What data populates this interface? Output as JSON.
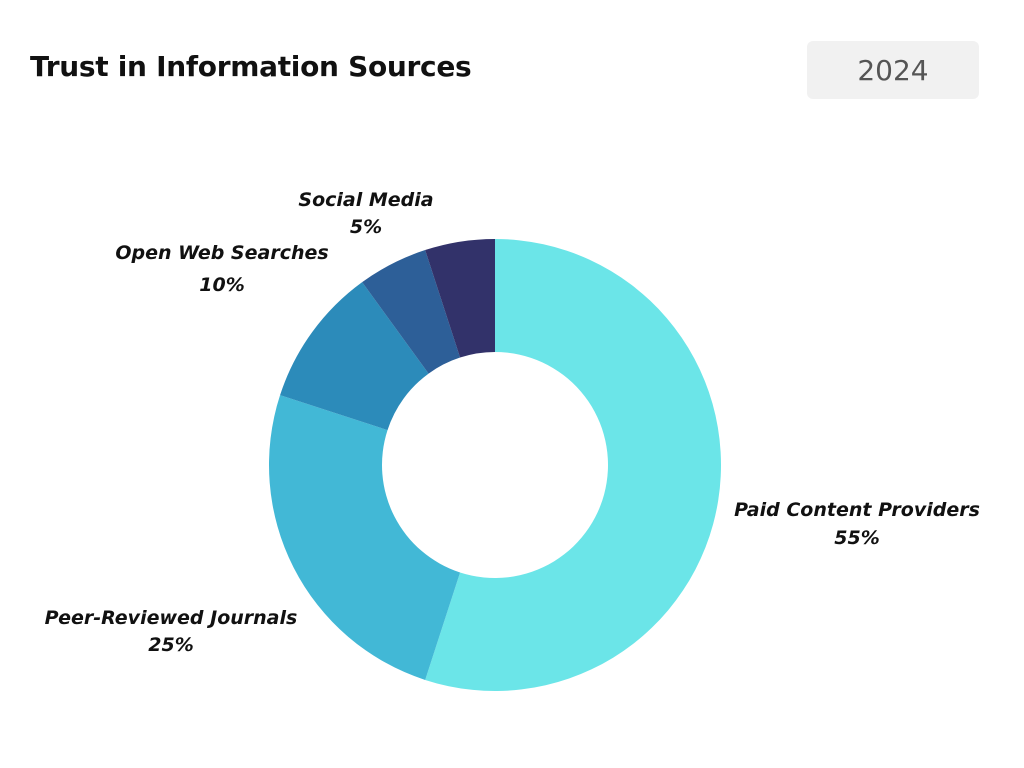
{
  "header": {
    "title": "Trust in Information Sources",
    "year": "2024"
  },
  "chart_data": {
    "type": "pie",
    "donut": true,
    "title": "Trust in Information Sources",
    "categories": [
      "Paid Content Providers",
      "Peer-Reviewed Journals",
      "Open Web Searches",
      "Social Media"
    ],
    "values": [
      55,
      25,
      10,
      5
    ],
    "value_labels": [
      "55%",
      "25%",
      "10%",
      "5%"
    ],
    "colors": [
      "#6be5e8",
      "#42b8d6",
      "#2c8bba",
      "#2d5f98",
      "#32326a"
    ],
    "legend": "none"
  }
}
